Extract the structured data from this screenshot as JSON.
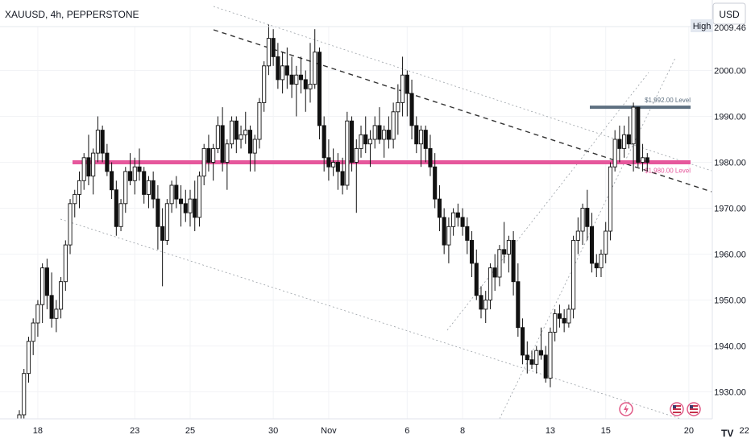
{
  "header": {
    "symbol_title": "XAUUSD, 4h, PEPPERSTONE",
    "currency": "USD"
  },
  "high_marker": {
    "label": "High",
    "value": "2009.46"
  },
  "levels": [
    {
      "label": "$1,992.00 Level",
      "price": 1992,
      "color": "#5d6f80"
    },
    {
      "label": "$1,980.00 Level",
      "price": 1980,
      "color": "#e6579c"
    }
  ],
  "colors": {
    "bullish": "#ffffff",
    "bearish": "#111111",
    "background": "#ffffff"
  },
  "icons": [
    "flash-icon",
    "us-flag-icon",
    "us-flag-icon"
  ],
  "chart_data": {
    "type": "candlestick",
    "title": "XAUUSD, 4h, PEPPERSTONE",
    "ylim": [
      1924,
      2015
    ],
    "y_ticks": [
      1930,
      1940,
      1950,
      1960,
      1970,
      1980,
      1990,
      2000
    ],
    "y_tick_labels": [
      "1930.00",
      "1940.00",
      "1950.00",
      "1960.00",
      "1970.00",
      "1980.00",
      "1990.00",
      "2000.00"
    ],
    "x_ticks": [
      {
        "label": "18",
        "index": 4
      },
      {
        "label": "23",
        "index": 25
      },
      {
        "label": "25",
        "index": 37
      },
      {
        "label": "30",
        "index": 55
      },
      {
        "label": "Nov",
        "index": 67
      },
      {
        "label": "6",
        "index": 84
      },
      {
        "label": "8",
        "index": 96
      },
      {
        "label": "13",
        "index": 115
      },
      {
        "label": "15",
        "index": 127
      },
      {
        "label": "20",
        "index": 145
      },
      {
        "label": "22",
        "index": 157
      }
    ],
    "ohlc": [
      [
        1922,
        1926,
        1920,
        1925
      ],
      [
        1925,
        1935,
        1923,
        1934
      ],
      [
        1934,
        1942,
        1932,
        1941
      ],
      [
        1941,
        1946,
        1938,
        1945
      ],
      [
        1945,
        1950,
        1942,
        1949
      ],
      [
        1949,
        1958,
        1945,
        1957
      ],
      [
        1957,
        1959,
        1948,
        1951
      ],
      [
        1951,
        1956,
        1944,
        1946
      ],
      [
        1946,
        1950,
        1943,
        1948
      ],
      [
        1948,
        1955,
        1946,
        1954
      ],
      [
        1954,
        1963,
        1952,
        1962
      ],
      [
        1962,
        1972,
        1960,
        1971
      ],
      [
        1971,
        1974,
        1968,
        1973
      ],
      [
        1973,
        1978,
        1970,
        1976
      ],
      [
        1976,
        1982,
        1974,
        1981
      ],
      [
        1981,
        1986,
        1975,
        1977
      ],
      [
        1977,
        1983,
        1973,
        1982
      ],
      [
        1982,
        1990,
        1980,
        1987
      ],
      [
        1987,
        1988,
        1980,
        1982
      ],
      [
        1982,
        1984,
        1977,
        1978
      ],
      [
        1978,
        1980,
        1972,
        1974
      ],
      [
        1974,
        1976,
        1964,
        1966
      ],
      [
        1966,
        1972,
        1965,
        1971
      ],
      [
        1971,
        1979,
        1969,
        1978
      ],
      [
        1978,
        1982,
        1975,
        1976
      ],
      [
        1976,
        1981,
        1973,
        1979
      ],
      [
        1979,
        1983,
        1976,
        1978
      ],
      [
        1978,
        1979,
        1971,
        1973
      ],
      [
        1973,
        1977,
        1970,
        1976
      ],
      [
        1976,
        1978,
        1970,
        1972
      ],
      [
        1972,
        1975,
        1961,
        1966
      ],
      [
        1966,
        1970,
        1953,
        1963
      ],
      [
        1963,
        1972,
        1962,
        1971
      ],
      [
        1971,
        1976,
        1969,
        1975
      ],
      [
        1975,
        1977,
        1970,
        1972
      ],
      [
        1972,
        1975,
        1966,
        1971
      ],
      [
        1971,
        1974,
        1967,
        1969
      ],
      [
        1969,
        1974,
        1966,
        1972
      ],
      [
        1972,
        1976,
        1965,
        1968
      ],
      [
        1968,
        1978,
        1966,
        1977
      ],
      [
        1977,
        1984,
        1975,
        1983
      ],
      [
        1983,
        1986,
        1978,
        1980
      ],
      [
        1980,
        1984,
        1976,
        1983
      ],
      [
        1983,
        1990,
        1982,
        1988
      ],
      [
        1988,
        1992,
        1978,
        1980
      ],
      [
        1980,
        1985,
        1974,
        1984
      ],
      [
        1984,
        1990,
        1983,
        1989
      ],
      [
        1989,
        1990,
        1982,
        1985
      ],
      [
        1985,
        1988,
        1983,
        1986
      ],
      [
        1986,
        1991,
        1984,
        1987
      ],
      [
        1987,
        1988,
        1978,
        1982
      ],
      [
        1982,
        1986,
        1978,
        1985
      ],
      [
        1985,
        1994,
        1983,
        1993
      ],
      [
        1993,
        2002,
        1991,
        2001
      ],
      [
        2001,
        2010,
        1999,
        2007
      ],
      [
        2007,
        2009,
        2001,
        2003
      ],
      [
        2003,
        2006,
        1996,
        1998
      ],
      [
        1998,
        2004,
        1995,
        2001
      ],
      [
        2001,
        2005,
        1996,
        1999
      ],
      [
        1999,
        2003,
        1994,
        1997
      ],
      [
        1997,
        2001,
        1990,
        1999
      ],
      [
        1999,
        2003,
        1995,
        1998
      ],
      [
        1998,
        2000,
        1991,
        1996
      ],
      [
        1996,
        2006,
        1993,
        1997
      ],
      [
        1997,
        2009,
        1996,
        2004
      ],
      [
        2004,
        2005,
        1985,
        1988
      ],
      [
        1988,
        1990,
        1978,
        1981
      ],
      [
        1981,
        1985,
        1976,
        1979
      ],
      [
        1979,
        1983,
        1977,
        1980
      ],
      [
        1980,
        1982,
        1974,
        1978
      ],
      [
        1978,
        1981,
        1973,
        1975
      ],
      [
        1975,
        1991,
        1974,
        1989
      ],
      [
        1989,
        1990,
        1978,
        1980
      ],
      [
        1980,
        1985,
        1969,
        1983
      ],
      [
        1983,
        1988,
        1981,
        1986
      ],
      [
        1986,
        1990,
        1982,
        1984
      ],
      [
        1984,
        1987,
        1979,
        1985
      ],
      [
        1985,
        1990,
        1983,
        1988
      ],
      [
        1988,
        1992,
        1984,
        1985
      ],
      [
        1985,
        1988,
        1981,
        1987
      ],
      [
        1987,
        1990,
        1983,
        1985
      ],
      [
        1985,
        1993,
        1983,
        1991
      ],
      [
        1991,
        1997,
        1986,
        1993
      ],
      [
        1993,
        2003,
        1990,
        1999
      ],
      [
        1999,
        2000,
        1990,
        1995
      ],
      [
        1995,
        1998,
        1985,
        1988
      ],
      [
        1988,
        1990,
        1982,
        1984
      ],
      [
        1984,
        1988,
        1979,
        1987
      ],
      [
        1987,
        1988,
        1980,
        1983
      ],
      [
        1983,
        1986,
        1977,
        1979
      ],
      [
        1979,
        1982,
        1970,
        1972
      ],
      [
        1972,
        1975,
        1965,
        1968
      ],
      [
        1968,
        1970,
        1960,
        1962
      ],
      [
        1962,
        1968,
        1958,
        1966
      ],
      [
        1966,
        1970,
        1964,
        1969
      ],
      [
        1969,
        1971,
        1966,
        1968
      ],
      [
        1968,
        1970,
        1964,
        1966
      ],
      [
        1966,
        1968,
        1960,
        1963
      ],
      [
        1963,
        1965,
        1955,
        1958
      ],
      [
        1958,
        1961,
        1950,
        1951
      ],
      [
        1951,
        1953,
        1946,
        1948
      ],
      [
        1948,
        1952,
        1945,
        1950
      ],
      [
        1950,
        1958,
        1948,
        1957
      ],
      [
        1957,
        1960,
        1952,
        1955
      ],
      [
        1955,
        1962,
        1953,
        1961
      ],
      [
        1961,
        1967,
        1958,
        1960
      ],
      [
        1960,
        1964,
        1956,
        1963
      ],
      [
        1963,
        1965,
        1951,
        1954
      ],
      [
        1954,
        1958,
        1942,
        1944
      ],
      [
        1944,
        1946,
        1936,
        1938
      ],
      [
        1938,
        1941,
        1934,
        1937
      ],
      [
        1937,
        1939,
        1935,
        1936
      ],
      [
        1936,
        1940,
        1934,
        1939
      ],
      [
        1939,
        1944,
        1937,
        1938
      ],
      [
        1938,
        1940,
        1932,
        1933
      ],
      [
        1933,
        1944,
        1931,
        1943
      ],
      [
        1943,
        1948,
        1941,
        1947
      ],
      [
        1947,
        1949,
        1944,
        1946
      ],
      [
        1946,
        1948,
        1943,
        1945
      ],
      [
        1945,
        1949,
        1944,
        1948
      ],
      [
        1948,
        1964,
        1946,
        1963
      ],
      [
        1963,
        1968,
        1960,
        1965
      ],
      [
        1965,
        1971,
        1962,
        1970
      ],
      [
        1970,
        1974,
        1963,
        1966
      ],
      [
        1966,
        1969,
        1956,
        1958
      ],
      [
        1958,
        1960,
        1955,
        1957
      ],
      [
        1957,
        1961,
        1955,
        1960
      ],
      [
        1960,
        1967,
        1958,
        1965
      ],
      [
        1965,
        1980,
        1963,
        1979
      ],
      [
        1979,
        1987,
        1978,
        1985
      ],
      [
        1985,
        1988,
        1980,
        1983
      ],
      [
        1983,
        1988,
        1981,
        1986
      ],
      [
        1986,
        1990,
        1983,
        1984
      ],
      [
        1984,
        1993,
        1978,
        1992
      ],
      [
        1992,
        1992,
        1979,
        1980
      ],
      [
        1980,
        1984,
        1978,
        1981
      ],
      [
        1981,
        1982,
        1978,
        1980
      ]
    ]
  }
}
